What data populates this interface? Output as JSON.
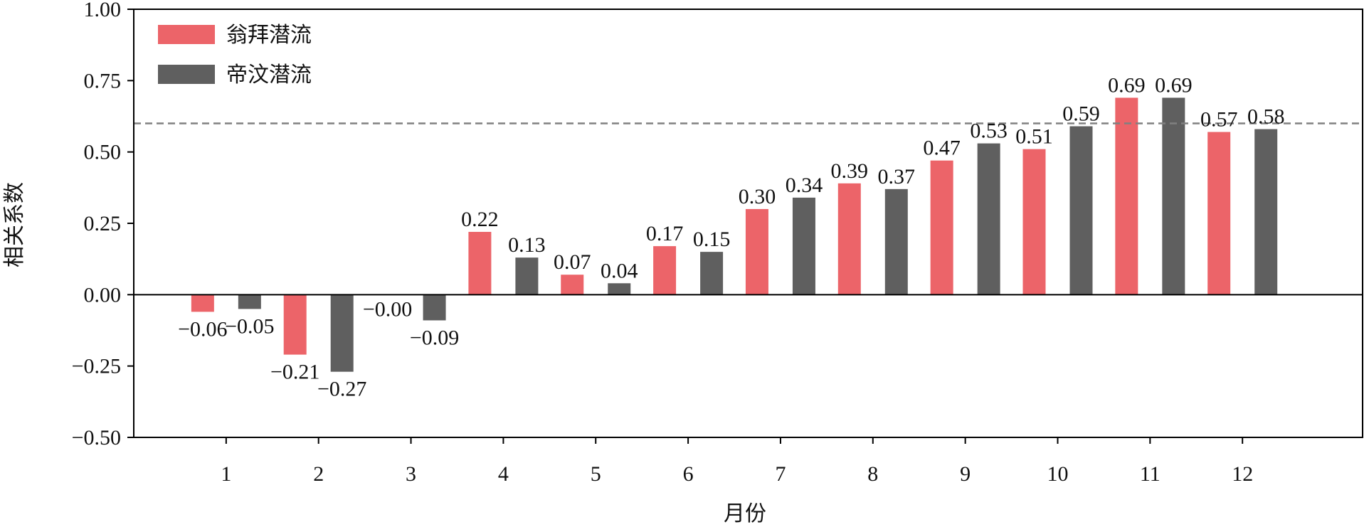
{
  "chart_data": {
    "type": "bar",
    "categories": [
      "1",
      "2",
      "3",
      "4",
      "5",
      "6",
      "7",
      "8",
      "9",
      "10",
      "11",
      "12"
    ],
    "series": [
      {
        "name": "翁拜潜流",
        "color": "#ec6469",
        "values": [
          -0.06,
          -0.21,
          -0.0,
          0.22,
          0.07,
          0.17,
          0.3,
          0.39,
          0.47,
          0.51,
          0.69,
          0.57
        ],
        "labels": [
          "−0.06",
          "−0.21",
          "−0.00",
          "0.22",
          "0.07",
          "0.17",
          "0.30",
          "0.39",
          "0.47",
          "0.51",
          "0.69",
          "0.57"
        ]
      },
      {
        "name": "帝汶潜流",
        "color": "#5f5f5f",
        "values": [
          -0.05,
          -0.27,
          -0.09,
          0.13,
          0.04,
          0.15,
          0.34,
          0.37,
          0.53,
          0.59,
          0.69,
          0.58
        ],
        "labels": [
          "−0.05",
          "−0.27",
          "−0.09",
          "0.13",
          "0.04",
          "0.15",
          "0.34",
          "0.37",
          "0.53",
          "0.59",
          "0.69",
          "0.58"
        ]
      }
    ],
    "xlabel": "月份",
    "ylabel": "相关系数",
    "ylim": [
      -0.5,
      1.0
    ],
    "yticks": [
      -0.5,
      -0.25,
      0.0,
      0.25,
      0.5,
      0.75,
      1.0
    ],
    "ytick_labels": [
      "−0.50",
      "−0.25",
      "0.00",
      "0.25",
      "0.50",
      "0.75",
      "1.00"
    ],
    "reference_line": {
      "y": 0.6,
      "style": "dashed",
      "color": "#808080"
    },
    "zero_line": true,
    "grid": false,
    "legend_position": "top-left"
  }
}
